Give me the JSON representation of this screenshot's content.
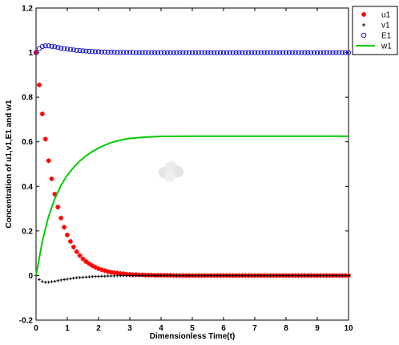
{
  "chart_data": {
    "type": "scatter",
    "title": "",
    "xlabel": "Dimensionless Time(t)",
    "ylabel": "Concentration of u1,v1,E1 and w1",
    "xlim": [
      0,
      10
    ],
    "ylim": [
      -0.2,
      1.2
    ],
    "x_ticks": [
      "0",
      "1",
      "2",
      "3",
      "4",
      "5",
      "6",
      "7",
      "8",
      "9",
      "10"
    ],
    "y_ticks": [
      "-0.2",
      "0",
      "0.2",
      "0.4",
      "0.6",
      "0.8",
      "1",
      "1.2"
    ],
    "legend_position": "top-right",
    "grid": false,
    "series": [
      {
        "name": "u1",
        "marker": "asterisk",
        "color": "#ff0000",
        "x": [
          0,
          0.1,
          0.2,
          0.3,
          0.4,
          0.5,
          0.6,
          0.7,
          0.8,
          0.9,
          1.0,
          1.1,
          1.2,
          1.3,
          1.4,
          1.5,
          1.6,
          1.7,
          1.8,
          1.9,
          2.0,
          2.1,
          2.2,
          2.3,
          2.4,
          2.5,
          2.6,
          2.7,
          2.8,
          2.9,
          3.0,
          3.1,
          3.2,
          3.3,
          3.4,
          3.5,
          3.6,
          3.7,
          3.8,
          3.9,
          4.0,
          4.1,
          4.2,
          4.3,
          4.4,
          4.5,
          4.6,
          4.7,
          4.8,
          4.9,
          5.0,
          5.1,
          5.2,
          5.3,
          5.4,
          5.5,
          5.6,
          5.7,
          5.8,
          5.9,
          6.0,
          6.1,
          6.2,
          6.3,
          6.4,
          6.5,
          6.6,
          6.7,
          6.8,
          6.9,
          7.0,
          7.1,
          7.2,
          7.3,
          7.4,
          7.5,
          7.6,
          7.7,
          7.8,
          7.9,
          8.0,
          8.1,
          8.2,
          8.3,
          8.4,
          8.5,
          8.6,
          8.7,
          8.8,
          8.9,
          9.0,
          9.1,
          9.2,
          9.3,
          9.4,
          9.5,
          9.6,
          9.7,
          9.8,
          9.9,
          10.0
        ],
        "y": [
          1.0,
          0.855,
          0.725,
          0.612,
          0.515,
          0.434,
          0.365,
          0.307,
          0.258,
          0.217,
          0.182,
          0.153,
          0.128,
          0.107,
          0.09,
          0.075,
          0.063,
          0.053,
          0.044,
          0.037,
          0.031,
          0.026,
          0.022,
          0.018,
          0.015,
          0.013,
          0.011,
          0.009,
          0.008,
          0.006,
          0.005,
          0.004,
          0.004,
          0.003,
          0.003,
          0.002,
          0.002,
          0.002,
          0.001,
          0.001,
          0.001,
          0.001,
          0.001,
          0.001,
          0.0,
          0.0,
          0.0,
          0.0,
          0.0,
          0.0,
          0.0,
          0.0,
          0.0,
          0.0,
          0.0,
          0.0,
          0.0,
          0.0,
          0.0,
          0.0,
          0.0,
          0.0,
          0.0,
          0.0,
          0.0,
          0.0,
          0.0,
          0.0,
          0.0,
          0.0,
          0.0,
          0.0,
          0.0,
          0.0,
          0.0,
          0.0,
          0.0,
          0.0,
          0.0,
          0.0,
          0.0,
          0.0,
          0.0,
          0.0,
          0.0,
          0.0,
          0.0,
          0.0,
          0.0,
          0.0,
          0.0,
          0.0,
          0.0,
          0.0,
          0.0,
          0.0,
          0.0,
          0.0,
          0.0,
          0.0,
          0.0
        ]
      },
      {
        "name": "v1",
        "marker": "dot",
        "color": "#000000",
        "x": [
          0,
          0.1,
          0.2,
          0.3,
          0.4,
          0.5,
          0.6,
          0.7,
          0.8,
          0.9,
          1.0,
          1.1,
          1.2,
          1.3,
          1.4,
          1.5,
          1.6,
          1.7,
          1.8,
          1.9,
          2.0,
          2.1,
          2.2,
          2.3,
          2.4,
          2.5,
          2.6,
          2.7,
          2.8,
          2.9,
          3.0,
          3.1,
          3.2,
          3.3,
          3.4,
          3.5,
          3.6,
          3.7,
          3.8,
          3.9,
          4.0,
          4.1,
          4.2,
          4.3,
          4.4,
          4.5,
          4.6,
          4.7,
          4.8,
          4.9,
          5.0,
          5.1,
          5.2,
          5.3,
          5.4,
          5.5,
          5.6,
          5.7,
          5.8,
          5.9,
          6.0,
          6.1,
          6.2,
          6.3,
          6.4,
          6.5,
          6.6,
          6.7,
          6.8,
          6.9,
          7.0,
          7.1,
          7.2,
          7.3,
          7.4,
          7.5,
          7.6,
          7.7,
          7.8,
          7.9,
          8.0,
          8.1,
          8.2,
          8.3,
          8.4,
          8.5,
          8.6,
          8.7,
          8.8,
          8.9,
          9.0,
          9.1,
          9.2,
          9.3,
          9.4,
          9.5,
          9.6,
          9.7,
          9.8,
          9.9,
          10.0
        ],
        "y": [
          0.0,
          -0.018,
          -0.027,
          -0.03,
          -0.03,
          -0.028,
          -0.026,
          -0.023,
          -0.02,
          -0.018,
          -0.016,
          -0.014,
          -0.012,
          -0.01,
          -0.009,
          -0.008,
          -0.007,
          -0.006,
          -0.005,
          -0.004,
          -0.004,
          -0.003,
          -0.003,
          -0.002,
          -0.002,
          -0.002,
          -0.001,
          -0.001,
          -0.001,
          -0.001,
          -0.001,
          -0.001,
          0.0,
          0.0,
          0.0,
          0.0,
          0.0,
          0.0,
          0.0,
          0.0,
          0.0,
          0.0,
          0.0,
          0.0,
          0.0,
          0.0,
          0.0,
          0.0,
          0.0,
          0.0,
          0.0,
          0.0,
          0.0,
          0.0,
          0.0,
          0.0,
          0.0,
          0.0,
          0.0,
          0.0,
          0.0,
          0.0,
          0.0,
          0.0,
          0.0,
          0.0,
          0.0,
          0.0,
          0.0,
          0.0,
          0.0,
          0.0,
          0.0,
          0.0,
          0.0,
          0.0,
          0.0,
          0.0,
          0.0,
          0.0,
          0.0,
          0.0,
          0.0,
          0.0,
          0.0,
          0.0,
          0.0,
          0.0,
          0.0,
          0.0,
          0.0,
          0.0,
          0.0,
          0.0,
          0.0,
          0.0,
          0.0,
          0.0,
          0.0,
          0.0,
          0.0
        ]
      },
      {
        "name": "E1",
        "marker": "circle",
        "color": "#0000cc",
        "x": [
          0,
          0.1,
          0.2,
          0.3,
          0.4,
          0.5,
          0.6,
          0.7,
          0.8,
          0.9,
          1.0,
          1.1,
          1.2,
          1.3,
          1.4,
          1.5,
          1.6,
          1.7,
          1.8,
          1.9,
          2.0,
          2.1,
          2.2,
          2.3,
          2.4,
          2.5,
          2.6,
          2.7,
          2.8,
          2.9,
          3.0,
          3.1,
          3.2,
          3.3,
          3.4,
          3.5,
          3.6,
          3.7,
          3.8,
          3.9,
          4.0,
          4.1,
          4.2,
          4.3,
          4.4,
          4.5,
          4.6,
          4.7,
          4.8,
          4.9,
          5.0,
          5.1,
          5.2,
          5.3,
          5.4,
          5.5,
          5.6,
          5.7,
          5.8,
          5.9,
          6.0,
          6.1,
          6.2,
          6.3,
          6.4,
          6.5,
          6.6,
          6.7,
          6.8,
          6.9,
          7.0,
          7.1,
          7.2,
          7.3,
          7.4,
          7.5,
          7.6,
          7.7,
          7.8,
          7.9,
          8.0,
          8.1,
          8.2,
          8.3,
          8.4,
          8.5,
          8.6,
          8.7,
          8.8,
          8.9,
          9.0,
          9.1,
          9.2,
          9.3,
          9.4,
          9.5,
          9.6,
          9.7,
          9.8,
          9.9,
          10.0
        ],
        "y": [
          1.0,
          1.018,
          1.027,
          1.03,
          1.03,
          1.028,
          1.026,
          1.023,
          1.02,
          1.018,
          1.016,
          1.014,
          1.012,
          1.01,
          1.009,
          1.008,
          1.007,
          1.006,
          1.005,
          1.004,
          1.004,
          1.003,
          1.003,
          1.002,
          1.002,
          1.002,
          1.001,
          1.001,
          1.001,
          1.001,
          1.001,
          1.001,
          1.0,
          1.0,
          1.0,
          1.0,
          1.0,
          1.0,
          1.0,
          1.0,
          1.0,
          1.0,
          1.0,
          1.0,
          1.0,
          1.0,
          1.0,
          1.0,
          1.0,
          1.0,
          1.0,
          1.0,
          1.0,
          1.0,
          1.0,
          1.0,
          1.0,
          1.0,
          1.0,
          1.0,
          1.0,
          1.0,
          1.0,
          1.0,
          1.0,
          1.0,
          1.0,
          1.0,
          1.0,
          1.0,
          1.0,
          1.0,
          1.0,
          1.0,
          1.0,
          1.0,
          1.0,
          1.0,
          1.0,
          1.0,
          1.0,
          1.0,
          1.0,
          1.0,
          1.0,
          1.0,
          1.0,
          1.0,
          1.0,
          1.0,
          1.0,
          1.0,
          1.0,
          1.0,
          1.0,
          1.0,
          1.0,
          1.0,
          1.0,
          1.0,
          1.0
        ]
      },
      {
        "name": "w1",
        "marker": "line",
        "color": "#00cc00",
        "x": [
          0,
          0.2,
          0.4,
          0.6,
          0.8,
          1.0,
          1.2,
          1.4,
          1.6,
          1.8,
          2.0,
          2.2,
          2.4,
          2.6,
          2.8,
          3.0,
          3.5,
          4.0,
          5.0,
          6.0,
          7.0,
          8.0,
          9.0,
          10.0
        ],
        "y": [
          0.0,
          0.153,
          0.265,
          0.345,
          0.405,
          0.45,
          0.485,
          0.514,
          0.537,
          0.556,
          0.572,
          0.585,
          0.596,
          0.604,
          0.61,
          0.615,
          0.621,
          0.624,
          0.625,
          0.625,
          0.625,
          0.625,
          0.625,
          0.625
        ]
      }
    ]
  }
}
